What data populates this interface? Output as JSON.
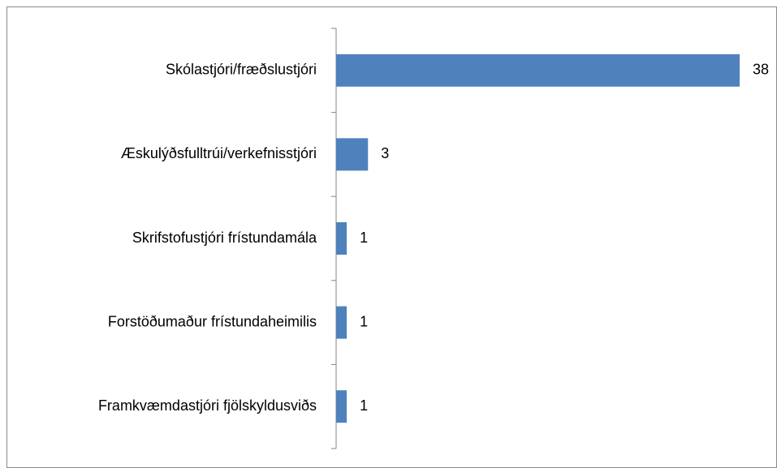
{
  "chart_data": {
    "type": "hbar",
    "categories": [
      "Skólastjóri/fræðslustjóri",
      "Æskulýðsfulltrúi/verkefnisstjóri",
      "Skrifstofustjóri frístundamála",
      "Forstöðumaður frístundaheimilis",
      "Framkvæmdastjóri fjölskyldusviðs"
    ],
    "values": [
      38,
      3,
      1,
      1,
      1
    ],
    "color": "#4f81bd"
  }
}
